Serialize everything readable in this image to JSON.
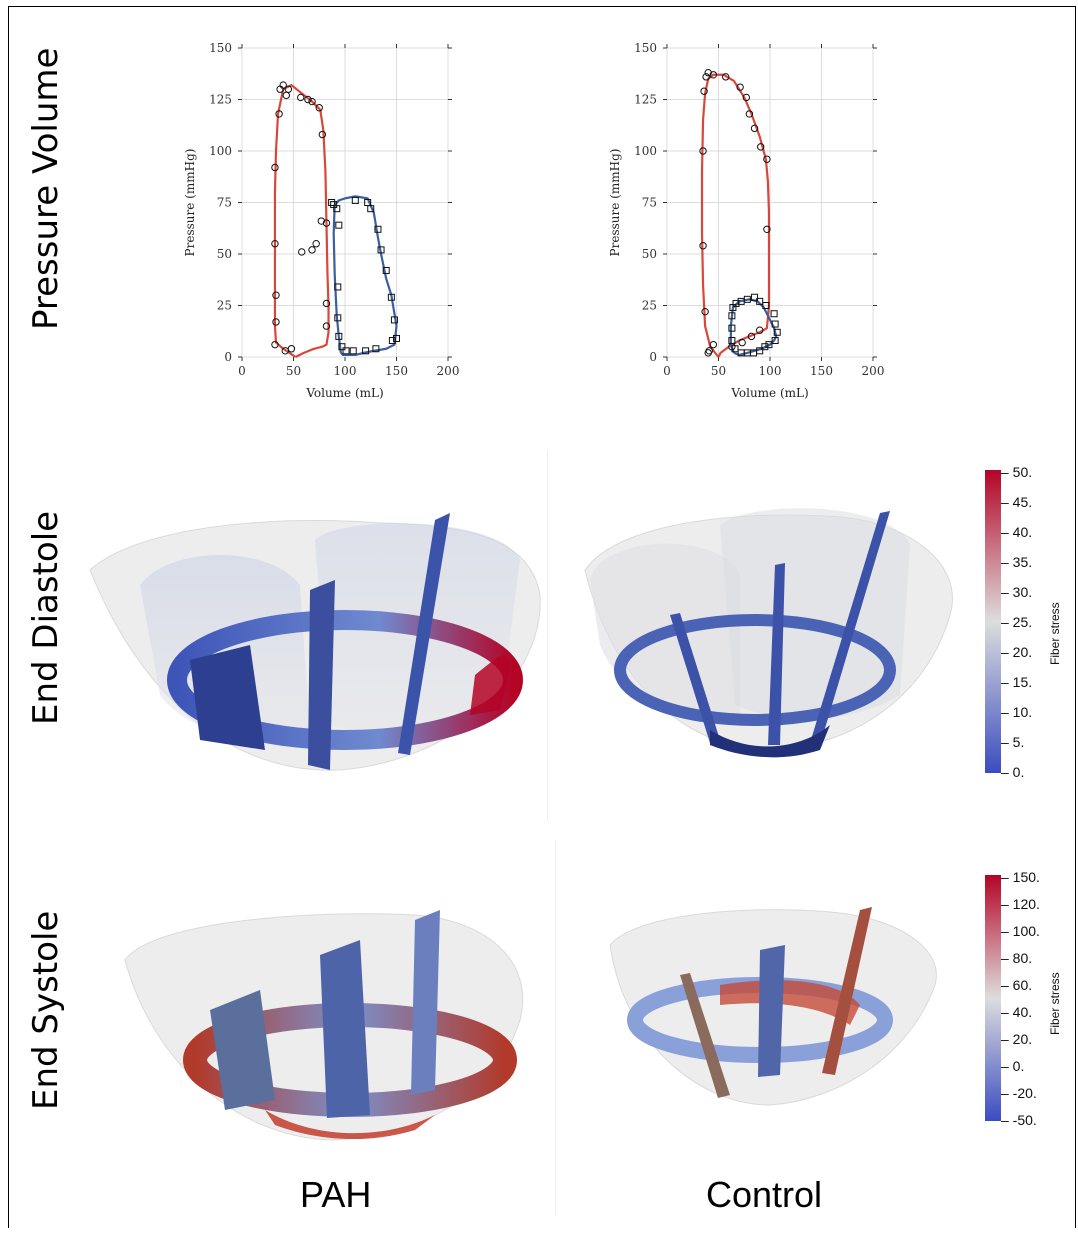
{
  "row_labels": {
    "pressure_volume": "Pressure Volume",
    "end_diastole": "End Diastole",
    "end_systole": "End Systole"
  },
  "column_labels": {
    "pah": "PAH",
    "control": "Control"
  },
  "colors": {
    "lv_loop": "#d9473a",
    "rv_loop": "#3a5f9e",
    "stress_low": "#3b4cc0",
    "stress_mid": "#dddddd",
    "stress_high": "#b40426"
  },
  "colorbars": {
    "diastole": {
      "title": "Fiber stress",
      "ticks": [
        "50.",
        "45.",
        "40.",
        "35.",
        "30.",
        "25.",
        "20.",
        "15.",
        "10.",
        "5.",
        "0."
      ]
    },
    "systole": {
      "title": "Fiber stress",
      "ticks": [
        "150.",
        "120.",
        "100.",
        "80.",
        "60.",
        "40.",
        "20.",
        "0.",
        "-20.",
        "-50."
      ]
    }
  },
  "chart_data": [
    {
      "type": "line",
      "panel": "PAH",
      "xlabel": "Volume (mL)",
      "ylabel": "Pressure (mmHg)",
      "xlim": [
        0,
        200
      ],
      "ylim": [
        0,
        150
      ],
      "xticks": [
        "0",
        "50",
        "100",
        "150",
        "200"
      ],
      "yticks": [
        "0",
        "25",
        "50",
        "75",
        "100",
        "125",
        "150"
      ],
      "grid": true,
      "series": [
        {
          "role": "lv-model",
          "x": [
            52,
            40,
            33,
            32,
            32,
            32,
            32,
            33,
            35,
            40,
            48,
            58,
            68,
            76,
            79,
            81,
            82,
            83,
            84,
            84,
            82,
            78,
            70,
            60,
            52
          ],
          "y": [
            0,
            4,
            7,
            15,
            30,
            55,
            80,
            100,
            118,
            130,
            132,
            128,
            124,
            120,
            110,
            90,
            65,
            40,
            25,
            12,
            6,
            5,
            4,
            2,
            0
          ]
        },
        {
          "role": "lv-measured",
          "x": [
            37,
            40,
            45,
            43,
            57,
            64,
            68,
            75,
            78,
            77,
            72,
            68,
            58,
            48,
            42,
            32,
            33,
            33,
            32,
            32,
            36,
            82,
            82,
            82
          ],
          "y": [
            130,
            132,
            130,
            127,
            126,
            125,
            124,
            121,
            108,
            66,
            55,
            52,
            51,
            4,
            3,
            6,
            17,
            30,
            55,
            92,
            118,
            65,
            26,
            15
          ]
        },
        {
          "role": "rv-model",
          "x": [
            96,
            94,
            92,
            90,
            89,
            90,
            94,
            100,
            110,
            122,
            128,
            132,
            135,
            140,
            145,
            150,
            148,
            140,
            128,
            118,
            110,
            104,
            98,
            96
          ],
          "y": [
            2,
            10,
            20,
            40,
            60,
            74,
            76,
            77,
            78,
            77,
            70,
            58,
            50,
            38,
            30,
            15,
            6,
            4,
            3,
            2,
            1,
            1,
            1,
            2
          ]
        },
        {
          "role": "rv-measured",
          "x": [
            89,
            92,
            94,
            110,
            122,
            125,
            132,
            135,
            140,
            145,
            148,
            150,
            146,
            130,
            120,
            108,
            101,
            97,
            94,
            93,
            93,
            87
          ],
          "y": [
            74,
            72,
            64,
            76,
            75,
            72,
            62,
            52,
            42,
            29,
            18,
            9,
            8,
            4,
            3,
            3,
            3,
            5,
            10,
            19,
            34,
            75
          ]
        }
      ]
    },
    {
      "type": "line",
      "panel": "Control",
      "xlabel": "Volume (mL)",
      "ylabel": "Pressure (mmHg)",
      "xlim": [
        0,
        200
      ],
      "ylim": [
        0,
        150
      ],
      "xticks": [
        "0",
        "50",
        "100",
        "150",
        "200"
      ],
      "yticks": [
        "0",
        "25",
        "50",
        "75",
        "100",
        "125",
        "150"
      ],
      "grid": true,
      "series": [
        {
          "role": "lv-model",
          "x": [
            50,
            42,
            37,
            35,
            34,
            34,
            35,
            37,
            40,
            45,
            55,
            65,
            75,
            82,
            90,
            96,
            98,
            99,
            99,
            99,
            97,
            90,
            80,
            70,
            60,
            52,
            50
          ],
          "y": [
            0,
            5,
            15,
            35,
            60,
            90,
            115,
            128,
            135,
            137,
            137,
            134,
            126,
            118,
            107,
            96,
            85,
            70,
            50,
            25,
            14,
            12,
            10,
            8,
            5,
            2,
            0
          ]
        },
        {
          "role": "lv-measured",
          "x": [
            36,
            38,
            40,
            45,
            57,
            71,
            77,
            80,
            85,
            91,
            97,
            97,
            40,
            41,
            35,
            35,
            37,
            45,
            63,
            73,
            82,
            90
          ],
          "y": [
            129,
            136,
            138,
            137,
            136,
            131,
            126,
            118,
            111,
            102,
            96,
            62,
            2,
            3,
            54,
            100,
            22,
            6,
            5,
            7,
            10,
            13
          ]
        },
        {
          "role": "rv-model",
          "x": [
            65,
            62,
            62,
            64,
            70,
            80,
            88,
            94,
            100,
            104,
            106,
            104,
            100,
            92,
            85,
            78,
            70,
            65
          ],
          "y": [
            2,
            6,
            15,
            24,
            27,
            28,
            27,
            24,
            18,
            14,
            10,
            8,
            6,
            4,
            3,
            2,
            1,
            2
          ]
        },
        {
          "role": "rv-measured",
          "x": [
            63,
            64,
            67,
            72,
            78,
            85,
            90,
            96,
            104,
            105,
            107,
            105,
            99,
            95,
            90,
            84,
            78,
            72,
            66,
            63,
            63
          ],
          "y": [
            20,
            24,
            26,
            27,
            28,
            29,
            27,
            25,
            21,
            16,
            12,
            8,
            6,
            5,
            3,
            2,
            2,
            2,
            4,
            8,
            14
          ]
        }
      ]
    }
  ]
}
